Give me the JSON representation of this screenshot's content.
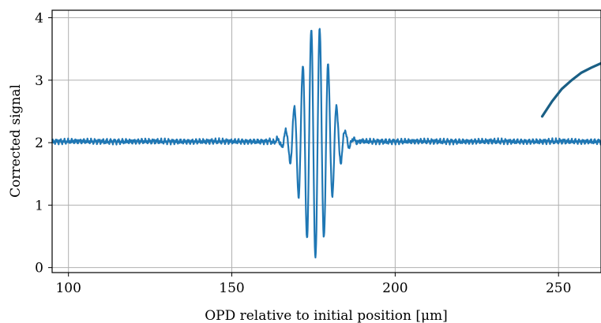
{
  "chart_data": {
    "type": "line",
    "title": "",
    "xlabel": "OPD relative to initial position [μm]",
    "ylabel": "Corrected signal",
    "xlim": [
      95,
      263
    ],
    "ylim": [
      -0.08,
      4.12
    ],
    "grid": true,
    "xticks": [
      100,
      150,
      200,
      250
    ],
    "yticks": [
      0,
      1,
      2,
      3,
      4
    ],
    "xtick_labels": [
      "100",
      "150",
      "200",
      "250"
    ],
    "ytick_labels": [
      "0",
      "1",
      "2",
      "3",
      "4"
    ],
    "baseline": 2.02,
    "fringe_packet": {
      "center": 175.6,
      "period": 2.6,
      "amplitude": 1.88,
      "envelope_width": 5.9
    },
    "series": [
      {
        "color": "#1f77b4",
        "x_range": [
          95,
          263
        ],
        "points": [
          [
            95,
            2.02
          ],
          [
            100,
            2.01
          ],
          [
            105,
            2.03
          ],
          [
            110,
            2.02
          ],
          [
            115,
            2.02
          ],
          [
            120,
            2.03
          ],
          [
            125,
            2.02
          ],
          [
            130,
            2.02
          ],
          [
            135,
            2.01
          ],
          [
            140,
            2.02
          ],
          [
            145,
            2.02
          ],
          [
            150,
            2.02
          ],
          [
            155,
            2.03
          ],
          [
            160,
            2.0
          ],
          [
            163,
            2.2
          ],
          [
            165.3,
            1.7
          ],
          [
            166.5,
            2.4
          ],
          [
            168,
            1.2
          ],
          [
            169.4,
            3.2
          ],
          [
            170.7,
            0.6
          ],
          [
            172.1,
            3.8
          ],
          [
            173.3,
            0.45
          ],
          [
            174.6,
            3.95
          ],
          [
            175.6,
            0.17
          ],
          [
            176.7,
            3.9
          ],
          [
            178.0,
            0.38
          ],
          [
            179.2,
            3.4
          ],
          [
            180.5,
            0.9
          ],
          [
            182.0,
            2.8
          ],
          [
            183.4,
            1.2
          ],
          [
            185,
            2.3
          ],
          [
            187,
            1.8
          ],
          [
            190,
            2.1
          ],
          [
            195,
            2.02
          ],
          [
            200,
            2.02
          ],
          [
            205,
            2.02
          ],
          [
            210,
            2.02
          ],
          [
            215,
            2.03
          ],
          [
            220,
            2.02
          ],
          [
            225,
            2.02
          ],
          [
            230,
            2.02
          ],
          [
            235,
            2.03
          ],
          [
            240,
            2.02
          ],
          [
            245,
            2.02
          ],
          [
            250,
            2.02
          ],
          [
            255,
            2.02
          ],
          [
            260,
            2.01
          ],
          [
            263,
            2.02
          ]
        ]
      },
      {
        "color": "#1a5f85",
        "x_range": [
          245,
          263
        ],
        "points": [
          [
            245,
            2.42
          ],
          [
            248,
            2.66
          ],
          [
            251,
            2.86
          ],
          [
            254,
            3.0
          ],
          [
            257,
            3.12
          ],
          [
            260,
            3.2
          ],
          [
            263,
            3.27
          ]
        ]
      }
    ]
  }
}
